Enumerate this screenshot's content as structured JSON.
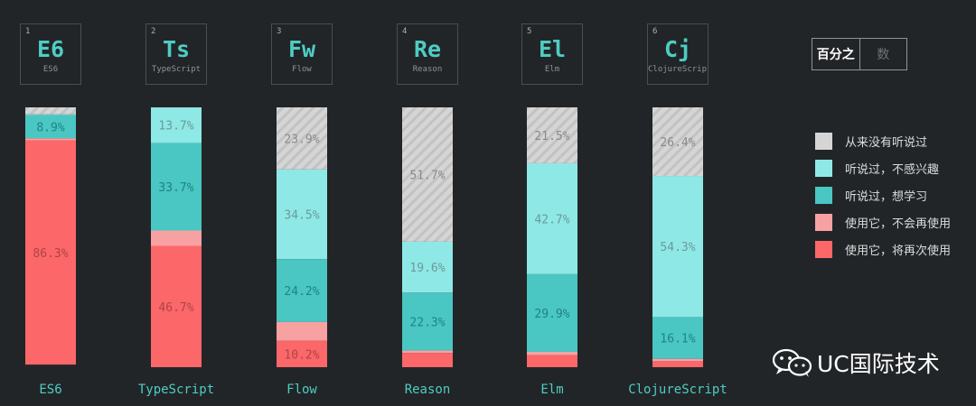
{
  "toggle": {
    "active_label": "百分之",
    "inactive_label": "数"
  },
  "brand": {
    "name": "UC国际技术"
  },
  "chart_data": {
    "type": "bar",
    "stacked": true,
    "percent": true,
    "ylim": [
      0,
      100
    ],
    "categories": [
      "ES6",
      "TypeScript",
      "Flow",
      "Reason",
      "Elm",
      "ClojureScript"
    ],
    "tiles": [
      {
        "num": "1",
        "abbr": "E6",
        "full": "ES6"
      },
      {
        "num": "2",
        "abbr": "Ts",
        "full": "TypeScript"
      },
      {
        "num": "3",
        "abbr": "Fw",
        "full": "Flow"
      },
      {
        "num": "4",
        "abbr": "Re",
        "full": "Reason"
      },
      {
        "num": "5",
        "abbr": "El",
        "full": "Elm"
      },
      {
        "num": "6",
        "abbr": "Cj",
        "full": "ClojureScript"
      }
    ],
    "legend_position": "right",
    "series": [
      {
        "name": "从来没有听说过",
        "color": "#d5d5d5",
        "pattern": "hatched",
        "values": [
          2.7,
          0.0,
          23.9,
          51.7,
          21.5,
          26.4
        ]
      },
      {
        "name": "听说过，不感兴趣",
        "color": "#8ee8e6",
        "values": [
          0.3,
          13.7,
          34.5,
          19.6,
          42.7,
          54.3
        ]
      },
      {
        "name": "听说过，想学习",
        "color": "#4ac6c3",
        "values": [
          8.9,
          33.7,
          24.2,
          22.3,
          29.9,
          16.1
        ]
      },
      {
        "name": "使用它，不会再使用",
        "color": "#f8a1a3",
        "values": [
          0.8,
          5.9,
          7.2,
          0.9,
          1.3,
          0.9
        ]
      },
      {
        "name": "使用它，将再次使用",
        "color": "#fc6769",
        "values": [
          86.3,
          46.7,
          10.2,
          5.5,
          4.6,
          2.3
        ]
      }
    ],
    "value_labels": [
      {
        "col": 0,
        "series": 2,
        "text": "8.9%"
      },
      {
        "col": 0,
        "series": 4,
        "text": "86.3%"
      },
      {
        "col": 1,
        "series": 1,
        "text": "13.7%"
      },
      {
        "col": 1,
        "series": 2,
        "text": "33.7%"
      },
      {
        "col": 1,
        "series": 4,
        "text": "46.7%"
      },
      {
        "col": 2,
        "series": 0,
        "text": "23.9%"
      },
      {
        "col": 2,
        "series": 1,
        "text": "34.5%"
      },
      {
        "col": 2,
        "series": 2,
        "text": "24.2%"
      },
      {
        "col": 2,
        "series": 4,
        "text": "10.2%"
      },
      {
        "col": 3,
        "series": 0,
        "text": "51.7%"
      },
      {
        "col": 3,
        "series": 1,
        "text": "19.6%"
      },
      {
        "col": 3,
        "series": 2,
        "text": "22.3%"
      },
      {
        "col": 4,
        "series": 0,
        "text": "21.5%"
      },
      {
        "col": 4,
        "series": 1,
        "text": "42.7%"
      },
      {
        "col": 4,
        "series": 2,
        "text": "29.9%"
      },
      {
        "col": 5,
        "series": 0,
        "text": "26.4%"
      },
      {
        "col": 5,
        "series": 1,
        "text": "54.3%"
      },
      {
        "col": 5,
        "series": 2,
        "text": "16.1%"
      }
    ]
  }
}
